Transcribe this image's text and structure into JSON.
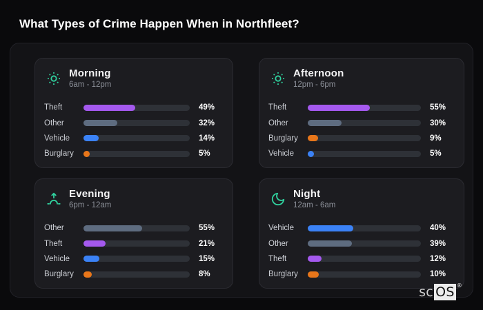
{
  "page": {
    "title": "What Types of Crime Happen When in Northfleet?",
    "watermark": {
      "prefix": "sc",
      "boxed": "OS",
      "reg": "®"
    }
  },
  "colors": {
    "accent": "#30d19e",
    "theft": "#a459ee",
    "other": "#5e6c80",
    "vehicle": "#3b82f6",
    "burglary": "#e8761a"
  },
  "chart_data": [
    {
      "type": "bar",
      "title": "Morning",
      "subtitle": "6am - 12pm",
      "icon": "sun-icon",
      "unit": "%",
      "xlim": [
        0,
        100
      ],
      "categories": [
        "Theft",
        "Other",
        "Vehicle",
        "Burglary"
      ],
      "values": [
        49,
        32,
        14,
        5
      ]
    },
    {
      "type": "bar",
      "title": "Afternoon",
      "subtitle": "12pm - 6pm",
      "icon": "sun-icon",
      "unit": "%",
      "xlim": [
        0,
        100
      ],
      "categories": [
        "Theft",
        "Other",
        "Burglary",
        "Vehicle"
      ],
      "values": [
        55,
        30,
        9,
        5
      ]
    },
    {
      "type": "bar",
      "title": "Evening",
      "subtitle": "6pm - 12am",
      "icon": "sunrise-icon",
      "unit": "%",
      "xlim": [
        0,
        100
      ],
      "categories": [
        "Other",
        "Theft",
        "Vehicle",
        "Burglary"
      ],
      "values": [
        55,
        21,
        15,
        8
      ]
    },
    {
      "type": "bar",
      "title": "Night",
      "subtitle": "12am - 6am",
      "icon": "moon-icon",
      "unit": "%",
      "xlim": [
        0,
        100
      ],
      "categories": [
        "Vehicle",
        "Other",
        "Theft",
        "Burglary"
      ],
      "values": [
        40,
        39,
        12,
        10
      ]
    }
  ]
}
